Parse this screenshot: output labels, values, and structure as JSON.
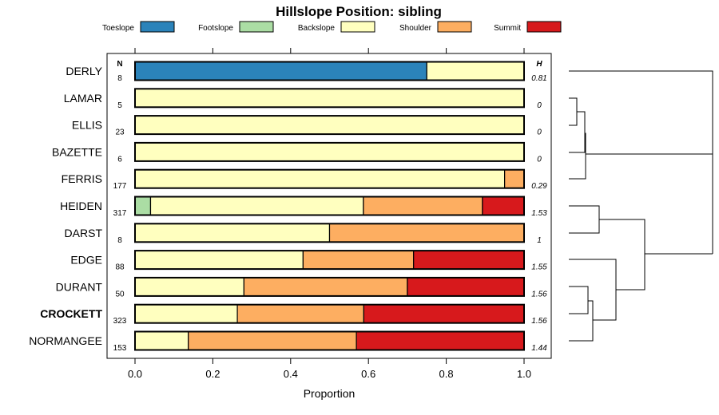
{
  "chart_data": {
    "type": "bar",
    "orientation": "horizontal",
    "stacked": true,
    "title": "Hillslope Position: sibling",
    "xlabel": "Proportion",
    "xlim": [
      0,
      1
    ],
    "xticks": [
      0,
      0.2,
      0.4,
      0.6,
      0.8,
      1
    ],
    "xtick_labels": [
      "0.0",
      "0.2",
      "0.4",
      "0.6",
      "0.8",
      "1.0"
    ],
    "n_header": "N",
    "h_header": "H",
    "legend_placement": "top",
    "series": [
      {
        "name": "Toeslope",
        "color": "#2b83ba"
      },
      {
        "name": "Footslope",
        "color": "#abdda4"
      },
      {
        "name": "Backslope",
        "color": "#ffffbf"
      },
      {
        "name": "Shoulder",
        "color": "#fdae61"
      },
      {
        "name": "Summit",
        "color": "#d7191c"
      }
    ],
    "rows": [
      {
        "name": "DERLY",
        "n": "8",
        "h": "0.81",
        "bold": false,
        "values": [
          0.75,
          0,
          0.25,
          0,
          0
        ]
      },
      {
        "name": "LAMAR",
        "n": "5",
        "h": "0",
        "bold": false,
        "values": [
          0,
          0,
          1,
          0,
          0
        ]
      },
      {
        "name": "ELLIS",
        "n": "23",
        "h": "0",
        "bold": false,
        "values": [
          0,
          0,
          1,
          0,
          0
        ]
      },
      {
        "name": "BAZETTE",
        "n": "6",
        "h": "0",
        "bold": false,
        "values": [
          0,
          0,
          1,
          0,
          0
        ]
      },
      {
        "name": "FERRIS",
        "n": "177",
        "h": "0.29",
        "bold": false,
        "values": [
          0,
          0,
          0.95,
          0.05,
          0
        ]
      },
      {
        "name": "HEIDEN",
        "n": "317",
        "h": "1.53",
        "bold": false,
        "values": [
          0,
          0.04,
          0.547,
          0.306,
          0.107
        ]
      },
      {
        "name": "DARST",
        "n": "8",
        "h": "1",
        "bold": false,
        "values": [
          0,
          0,
          0.5,
          0.5,
          0
        ]
      },
      {
        "name": "EDGE",
        "n": "88",
        "h": "1.55",
        "bold": false,
        "values": [
          0,
          0,
          0.432,
          0.284,
          0.284
        ]
      },
      {
        "name": "DURANT",
        "n": "50",
        "h": "1.56",
        "bold": false,
        "values": [
          0,
          0,
          0.28,
          0.42,
          0.3
        ]
      },
      {
        "name": "CROCKETT",
        "n": "323",
        "h": "1.56",
        "bold": true,
        "values": [
          0,
          0,
          0.263,
          0.325,
          0.412
        ]
      },
      {
        "name": "NORMANGEE",
        "n": "153",
        "h": "1.44",
        "bold": false,
        "values": [
          0,
          0,
          0.137,
          0.432,
          0.431
        ]
      }
    ]
  }
}
